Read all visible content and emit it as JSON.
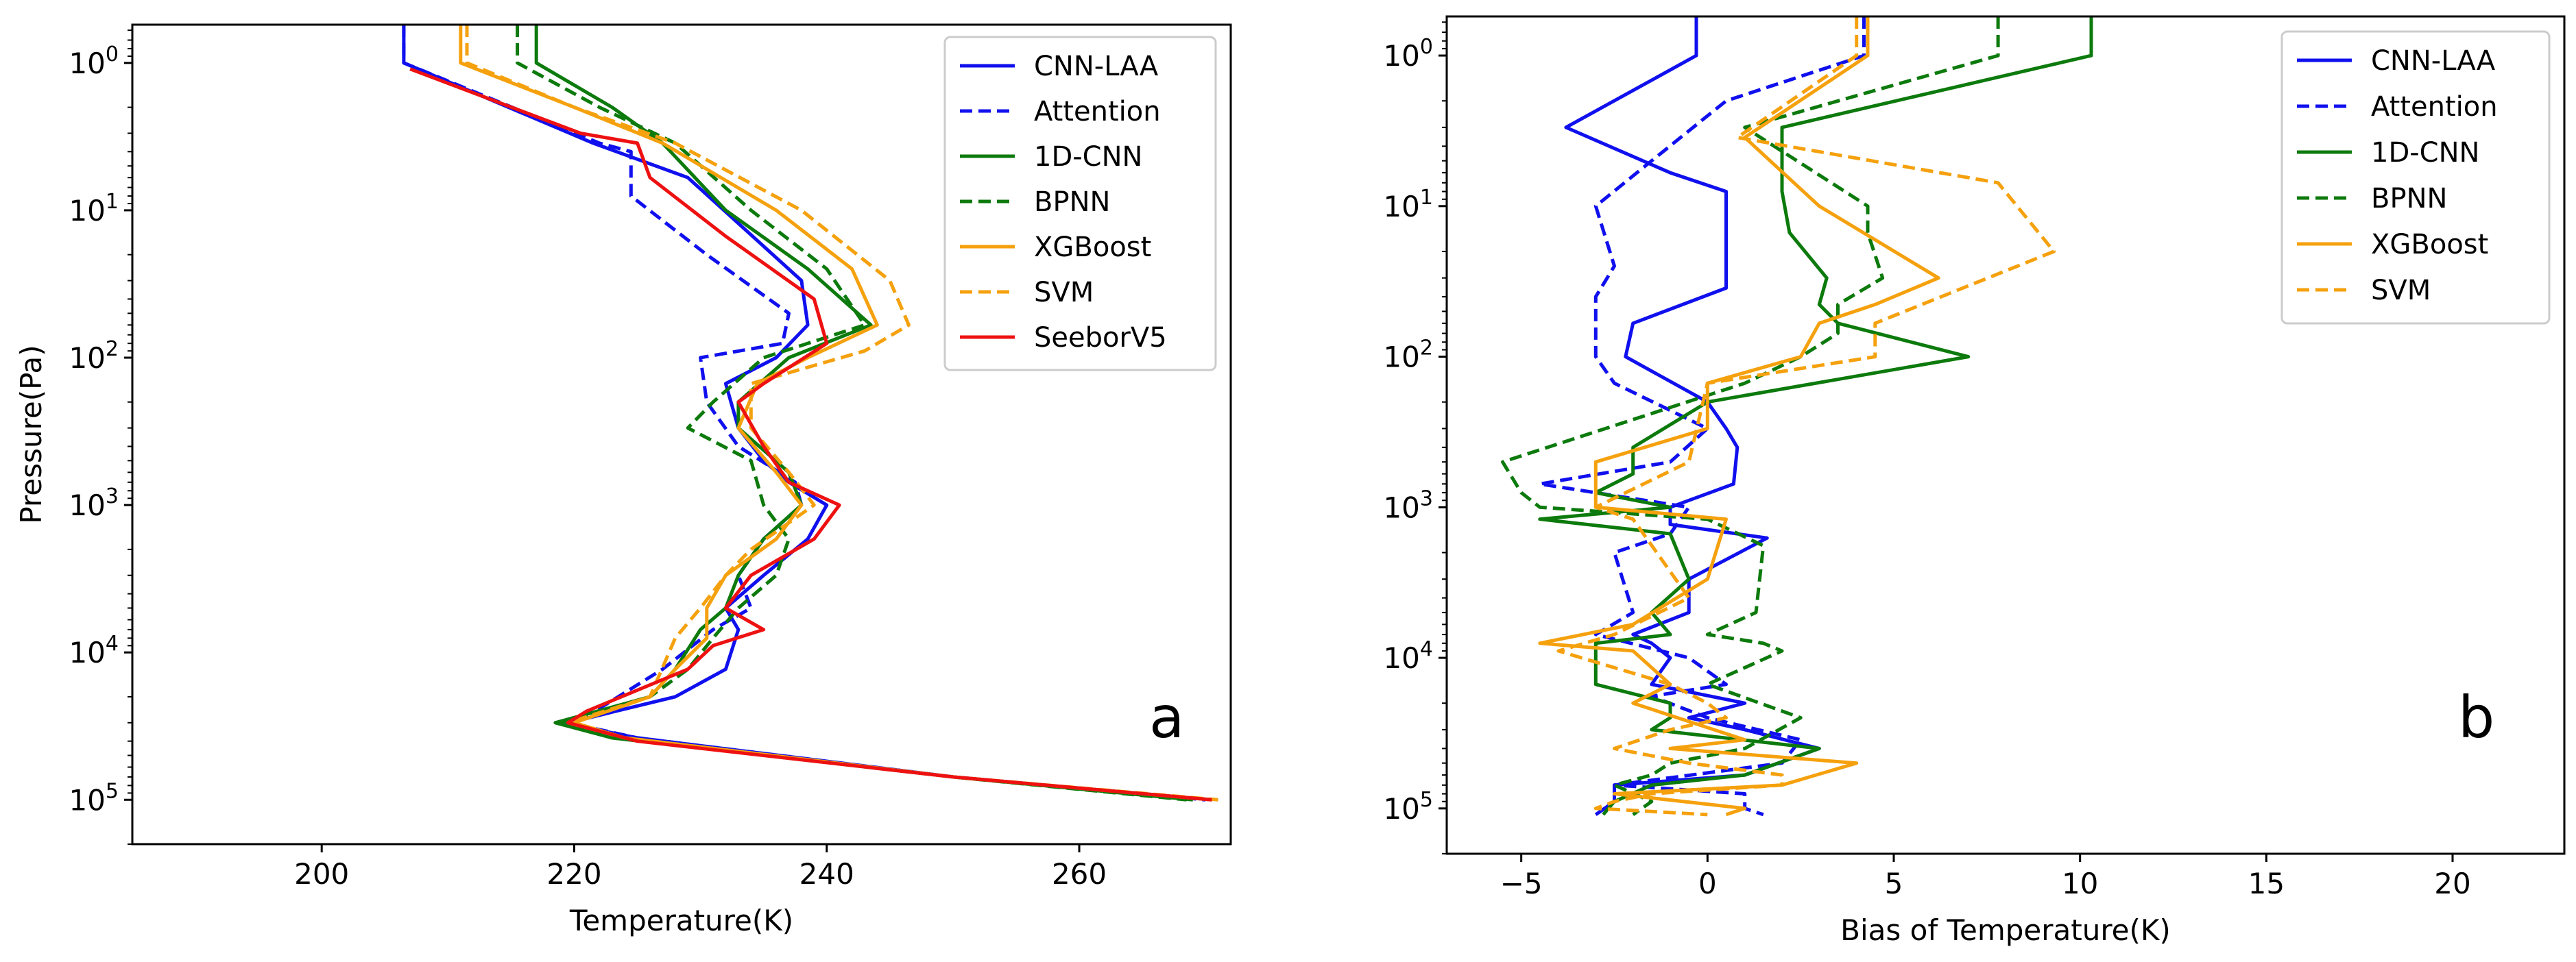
{
  "chart_data": [
    {
      "type": "line",
      "panel_label": "a",
      "xlabel": "Temperature(K)",
      "ylabel": "Pressure(Pa)",
      "xlim": [
        185,
        272
      ],
      "ylim": [
        0.55,
        200000
      ],
      "y_scale": "log",
      "y_inverted": true,
      "x_ticks": [
        {
          "value": 200,
          "label": "200"
        },
        {
          "value": 220,
          "label": "220"
        },
        {
          "value": 240,
          "label": "240"
        },
        {
          "value": 260,
          "label": "260"
        }
      ],
      "y_ticks": [
        {
          "value": 1,
          "base": "10",
          "exp": "0"
        },
        {
          "value": 10,
          "base": "10",
          "exp": "1"
        },
        {
          "value": 100,
          "base": "10",
          "exp": "2"
        },
        {
          "value": 1000,
          "base": "10",
          "exp": "3"
        },
        {
          "value": 10000,
          "base": "10",
          "exp": "4"
        },
        {
          "value": 100000,
          "base": "10",
          "exp": "5"
        }
      ],
      "legend_position": "top-right",
      "series": [
        {
          "name": "CNN-LAA",
          "color": "#1010ee",
          "dash": "solid",
          "x": [
            206.5,
            206.5,
            221.5,
            229,
            238,
            238.5,
            236,
            232,
            233,
            235,
            237,
            240,
            238.5,
            235,
            232,
            233,
            232,
            228,
            221,
            219,
            225,
            250,
            270.5
          ],
          "y": [
            0.55,
            1,
            3.5,
            6,
            30,
            60,
            100,
            150,
            300,
            500,
            700,
            1000,
            1700,
            3000,
            5000,
            7000,
            13000,
            20000,
            28000,
            30000,
            38000,
            70000,
            100000
          ]
        },
        {
          "name": "Attention",
          "color": "#1010ee",
          "dash": "dashed",
          "x": [
            206.5,
            206.5,
            222,
            224.5,
            224.5,
            230.5,
            237,
            236.5,
            230,
            230.5,
            233,
            237.5,
            238,
            235,
            233,
            234,
            231,
            227,
            222,
            219.5,
            225,
            250,
            270
          ],
          "y": [
            0.55,
            1,
            3.5,
            4,
            8,
            20,
            50,
            80,
            100,
            200,
            400,
            700,
            1000,
            1700,
            3000,
            5000,
            7000,
            13000,
            24000,
            30000,
            38000,
            70000,
            100000
          ]
        },
        {
          "name": "1D-CNN",
          "color": "#0c7a0c",
          "dash": "solid",
          "x": [
            217,
            217,
            223,
            227,
            232,
            238.5,
            243.5,
            237,
            233,
            233,
            237,
            238,
            235,
            233,
            232,
            230,
            228,
            226,
            218.5,
            223,
            250,
            269
          ],
          "y": [
            0.55,
            1,
            2,
            3.5,
            10,
            25,
            60,
            100,
            200,
            300,
            600,
            1000,
            1700,
            3000,
            5000,
            7000,
            13000,
            20000,
            30000,
            38000,
            70000,
            100000
          ]
        },
        {
          "name": "BPNN",
          "color": "#0c7a0c",
          "dash": "dashed",
          "x": [
            215.5,
            215.5,
            222,
            228,
            234,
            240,
            243,
            235,
            231,
            229,
            234,
            235,
            237,
            236,
            233,
            231,
            229,
            226,
            219,
            223,
            250,
            268.5
          ],
          "y": [
            0.55,
            1,
            2,
            3.5,
            10,
            25,
            60,
            100,
            200,
            300,
            500,
            1000,
            1700,
            3000,
            5000,
            8000,
            13000,
            20000,
            30000,
            38000,
            70000,
            100000
          ]
        },
        {
          "name": "XGBoost",
          "color": "#f5a10e",
          "dash": "solid",
          "x": [
            211,
            211,
            220,
            227,
            236,
            242,
            244,
            238.5,
            234.5,
            233,
            236,
            238,
            236,
            232,
            230.5,
            230.5,
            228,
            226,
            220,
            224,
            250,
            270.5
          ],
          "y": [
            0.55,
            1,
            2,
            3.5,
            10,
            25,
            60,
            100,
            150,
            300,
            600,
            1000,
            1700,
            3000,
            5000,
            8000,
            13000,
            20000,
            30000,
            38000,
            70000,
            100000
          ]
        },
        {
          "name": "SVM",
          "color": "#f5a10e",
          "dash": "dashed",
          "x": [
            211.5,
            211.5,
            220,
            228,
            238,
            245,
            246.5,
            243,
            234,
            234,
            237,
            239,
            234,
            232,
            230,
            228,
            226,
            219.5,
            224,
            250,
            271
          ],
          "y": [
            0.55,
            1,
            2,
            3.5,
            10,
            30,
            60,
            90,
            150,
            300,
            600,
            1000,
            2000,
            3000,
            5000,
            8000,
            20000,
            30000,
            38000,
            70000,
            100000
          ]
        },
        {
          "name": "SeeborV5",
          "color": "#ee1111",
          "dash": "solid",
          "x": [
            207,
            220.5,
            225,
            226,
            232,
            239,
            240,
            235,
            233,
            235,
            237,
            241,
            239,
            234,
            232,
            235,
            231,
            229,
            221,
            219.5,
            225,
            250,
            270.5
          ],
          "y": [
            1.1,
            3,
            3.5,
            6,
            15,
            40,
            80,
            150,
            200,
            400,
            700,
            1000,
            1700,
            3000,
            5000,
            7000,
            9000,
            13000,
            25000,
            30000,
            40000,
            70000,
            100000
          ]
        }
      ]
    },
    {
      "type": "line",
      "panel_label": "b",
      "xlabel": "Bias of Temperature(K)",
      "ylabel": "",
      "xlim": [
        -7,
        23
      ],
      "ylim": [
        0.55,
        200000
      ],
      "y_scale": "log",
      "y_inverted": true,
      "x_ticks": [
        {
          "value": -5,
          "label": "−5"
        },
        {
          "value": 0,
          "label": "0"
        },
        {
          "value": 5,
          "label": "5"
        },
        {
          "value": 10,
          "label": "10"
        },
        {
          "value": 15,
          "label": "15"
        },
        {
          "value": 20,
          "label": "20"
        }
      ],
      "y_ticks": [
        {
          "value": 1,
          "base": "10",
          "exp": "0"
        },
        {
          "value": 10,
          "base": "10",
          "exp": "1"
        },
        {
          "value": 100,
          "base": "10",
          "exp": "2"
        },
        {
          "value": 1000,
          "base": "10",
          "exp": "3"
        },
        {
          "value": 10000,
          "base": "10",
          "exp": "4"
        },
        {
          "value": 100000,
          "base": "10",
          "exp": "5"
        }
      ],
      "legend_position": "top-right",
      "series": [
        {
          "name": "CNN-LAA",
          "color": "#1010ee",
          "dash": "solid",
          "x": [
            -0.3,
            -0.3,
            -3.8,
            -1,
            0.5,
            0.5,
            0.5,
            -2,
            -2.2,
            0,
            0.5,
            0.8,
            0.7,
            -1,
            -1,
            1.6,
            -0.5,
            -0.5,
            -2,
            -1.5,
            -1,
            -1.5,
            1,
            -0.5,
            1,
            3,
            1,
            -2.5,
            -2.5,
            -3
          ],
          "y": [
            0.55,
            1,
            3,
            6,
            8,
            20,
            35,
            60,
            100,
            200,
            300,
            400,
            700,
            1000,
            1300,
            1600,
            3000,
            5000,
            7000,
            8000,
            10000,
            15000,
            20000,
            25000,
            30000,
            40000,
            60000,
            70000,
            90000,
            110000
          ]
        },
        {
          "name": "Attention",
          "color": "#1010ee",
          "dash": "dashed",
          "x": [
            4.2,
            4.2,
            0.5,
            -1.5,
            -3,
            -2.5,
            -3,
            -3,
            -2.5,
            0,
            -1,
            -4.5,
            -0.5,
            -1,
            -2.5,
            -2,
            -3,
            -0.5,
            0.5,
            -1.5,
            0,
            2.5,
            2,
            -2.5,
            1,
            1,
            1.5
          ],
          "y": [
            0.55,
            1,
            2,
            5,
            10,
            25,
            40,
            100,
            150,
            300,
            500,
            700,
            1000,
            1500,
            2000,
            5000,
            7000,
            10000,
            15000,
            18000,
            25000,
            35000,
            50000,
            70000,
            80000,
            100000,
            110000
          ]
        },
        {
          "name": "1D-CNN",
          "color": "#0c7a0c",
          "dash": "solid",
          "x": [
            10.3,
            10.3,
            2,
            2,
            2.2,
            3.2,
            3,
            3.5,
            7,
            0,
            -2,
            -2,
            -3,
            -1,
            -4.5,
            -1,
            -0.5,
            -1.5,
            -1,
            -3,
            -3,
            -3,
            -1,
            -1,
            -1.5,
            3,
            1,
            -1.5,
            -2.5,
            -2.8
          ],
          "y": [
            0.55,
            1,
            3,
            8,
            15,
            30,
            45,
            60,
            100,
            200,
            400,
            600,
            800,
            1000,
            1200,
            1500,
            3000,
            5000,
            7000,
            8000,
            10000,
            15000,
            20000,
            25000,
            30000,
            40000,
            60000,
            70000,
            90000,
            110000
          ]
        },
        {
          "name": "BPNN",
          "color": "#0c7a0c",
          "dash": "dashed",
          "x": [
            7.8,
            7.8,
            1,
            4.3,
            4.3,
            4.7,
            3.5,
            3.5,
            2.5,
            1,
            -5.5,
            -5,
            -4.5,
            0,
            1.5,
            1.3,
            0,
            1.5,
            2,
            0,
            2.5,
            1,
            -1,
            -1.5,
            -2.5,
            -1.5,
            -2
          ],
          "y": [
            0.55,
            1,
            3,
            10,
            15,
            30,
            45,
            70,
            100,
            150,
            500,
            800,
            1000,
            1200,
            1800,
            5000,
            7000,
            8000,
            9000,
            15000,
            25000,
            40000,
            50000,
            60000,
            70000,
            90000,
            110000
          ]
        },
        {
          "name": "XGBoost",
          "color": "#f5a10e",
          "dash": "solid",
          "x": [
            4.3,
            4.3,
            1,
            3,
            6.2,
            4.5,
            3,
            2.5,
            0,
            0,
            -3,
            -3,
            0.5,
            0,
            -2,
            -4.5,
            -2,
            -1,
            -2,
            1,
            -1,
            4,
            2,
            -2.5,
            1,
            0.5
          ],
          "y": [
            0.55,
            1,
            3.5,
            10,
            30,
            45,
            60,
            100,
            150,
            300,
            500,
            1000,
            1200,
            3000,
            6000,
            8000,
            9000,
            15000,
            20000,
            35000,
            40000,
            50000,
            70000,
            80000,
            100000,
            110000
          ]
        },
        {
          "name": "SVM",
          "color": "#f5a10e",
          "dash": "dashed",
          "x": [
            4,
            4,
            0.8,
            7.8,
            9.3,
            4.5,
            4.5,
            0,
            -0.5,
            -3,
            -2,
            -0.5,
            -2.5,
            -4,
            -1,
            0,
            0.5,
            -1,
            -2.5,
            -0.5,
            2,
            2,
            -1.5,
            -2.5,
            -3,
            0
          ],
          "y": [
            0.55,
            1,
            3.5,
            7,
            20,
            60,
            100,
            150,
            500,
            1000,
            1200,
            4000,
            7000,
            9000,
            15000,
            20000,
            25000,
            30000,
            40000,
            50000,
            60000,
            70000,
            80000,
            90000,
            100000,
            110000
          ]
        }
      ]
    }
  ]
}
